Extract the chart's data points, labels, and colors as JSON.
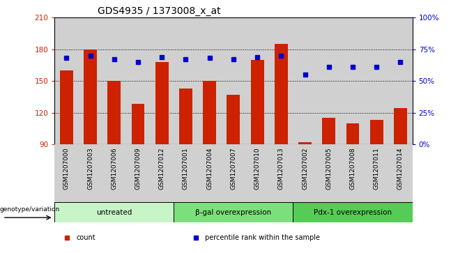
{
  "title": "GDS4935 / 1373008_x_at",
  "samples": [
    "GSM1207000",
    "GSM1207003",
    "GSM1207006",
    "GSM1207009",
    "GSM1207012",
    "GSM1207001",
    "GSM1207004",
    "GSM1207007",
    "GSM1207010",
    "GSM1207013",
    "GSM1207002",
    "GSM1207005",
    "GSM1207008",
    "GSM1207011",
    "GSM1207014"
  ],
  "counts": [
    160,
    180,
    150,
    128,
    168,
    143,
    150,
    137,
    170,
    185,
    92,
    115,
    110,
    113,
    124
  ],
  "percentiles": [
    68,
    70,
    67,
    65,
    69,
    67,
    68,
    67,
    69,
    70,
    55,
    61,
    61,
    61,
    65
  ],
  "groups": [
    {
      "label": "untreated",
      "start": 0,
      "end": 5,
      "color": "#c8f5c8"
    },
    {
      "label": "β-gal overexpression",
      "start": 5,
      "end": 10,
      "color": "#7be07b"
    },
    {
      "label": "Pdx-1 overexpression",
      "start": 10,
      "end": 15,
      "color": "#55cc55"
    }
  ],
  "ylim_left": [
    90,
    210
  ],
  "ylim_right": [
    0,
    100
  ],
  "yticks_left": [
    90,
    120,
    150,
    180,
    210
  ],
  "yticks_right": [
    0,
    25,
    50,
    75,
    100
  ],
  "bar_color": "#cc2200",
  "dot_color": "#0000cc",
  "bar_width": 0.55,
  "baseline": 90,
  "col_bg_color": "#d0d0d0",
  "legend_items": [
    {
      "label": "count",
      "color": "#cc2200"
    },
    {
      "label": "percentile rank within the sample",
      "color": "#0000cc"
    }
  ],
  "genotype_label": "genotype/variation",
  "grid_color": "#000000",
  "fig_width": 6.8,
  "fig_height": 3.63,
  "dpi": 100
}
